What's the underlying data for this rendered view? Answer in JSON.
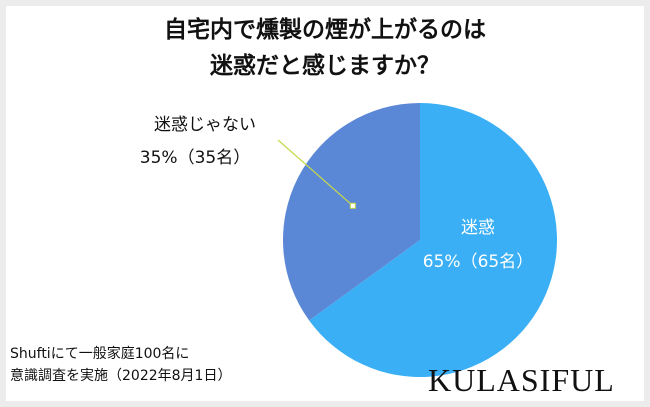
{
  "chart_data": {
    "type": "pie",
    "title": "自宅内で燻製の煙が上がるのは\n迷惑だと感じますか？",
    "categories": [
      "迷惑",
      "迷惑じゃない"
    ],
    "values": [
      65,
      35
    ],
    "value_labels": [
      "65%（65名）",
      "35%（35名）"
    ],
    "colors": [
      "#3aaff5",
      "#5b88d6"
    ]
  },
  "note": "Shuftiにて一般家庭100名に\n意識調査を実施（2022年8月1日）",
  "brand": "KULASIFUL"
}
